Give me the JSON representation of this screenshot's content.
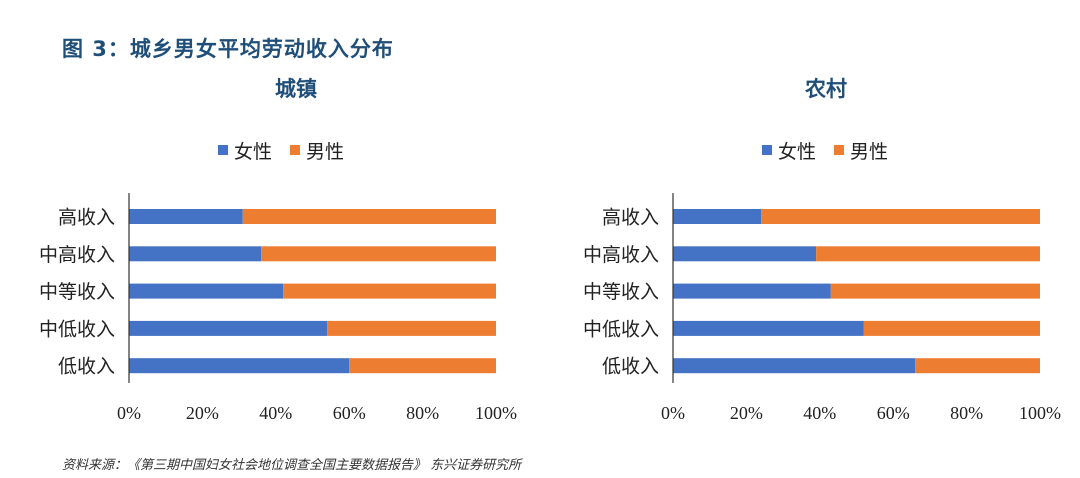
{
  "figure_title": "图 3：城乡男女平均劳动收入分布",
  "source": "资料来源：《第三期中国妇女社会地位调查全国主要数据报告》 东兴证券研究所",
  "colors": {
    "female": "#4472c4",
    "male": "#ed7d31",
    "axis": "#333333",
    "title": "#1f4e79"
  },
  "chart_data": [
    {
      "type": "bar",
      "orientation": "horizontal",
      "stacked": "percent",
      "title": "城镇",
      "categories": [
        "高收入",
        "中高收入",
        "中等收入",
        "中低收入",
        "低收入"
      ],
      "series": [
        {
          "name": "女性",
          "values": [
            31,
            36,
            42,
            54,
            60
          ]
        },
        {
          "name": "男性",
          "values": [
            69,
            64,
            58,
            46,
            40
          ]
        }
      ],
      "xlim": [
        0,
        100
      ],
      "xticks": [
        "0%",
        "20%",
        "40%",
        "60%",
        "80%",
        "100%"
      ],
      "legend": "top",
      "grid": false
    },
    {
      "type": "bar",
      "orientation": "horizontal",
      "stacked": "percent",
      "title": "农村",
      "categories": [
        "高收入",
        "中高收入",
        "中等收入",
        "中低收入",
        "低收入"
      ],
      "series": [
        {
          "name": "女性",
          "values": [
            24,
            39,
            43,
            52,
            66
          ]
        },
        {
          "name": "男性",
          "values": [
            76,
            61,
            57,
            48,
            34
          ]
        }
      ],
      "xlim": [
        0,
        100
      ],
      "xticks": [
        "0%",
        "20%",
        "40%",
        "60%",
        "80%",
        "100%"
      ],
      "legend": "top",
      "grid": false
    }
  ]
}
